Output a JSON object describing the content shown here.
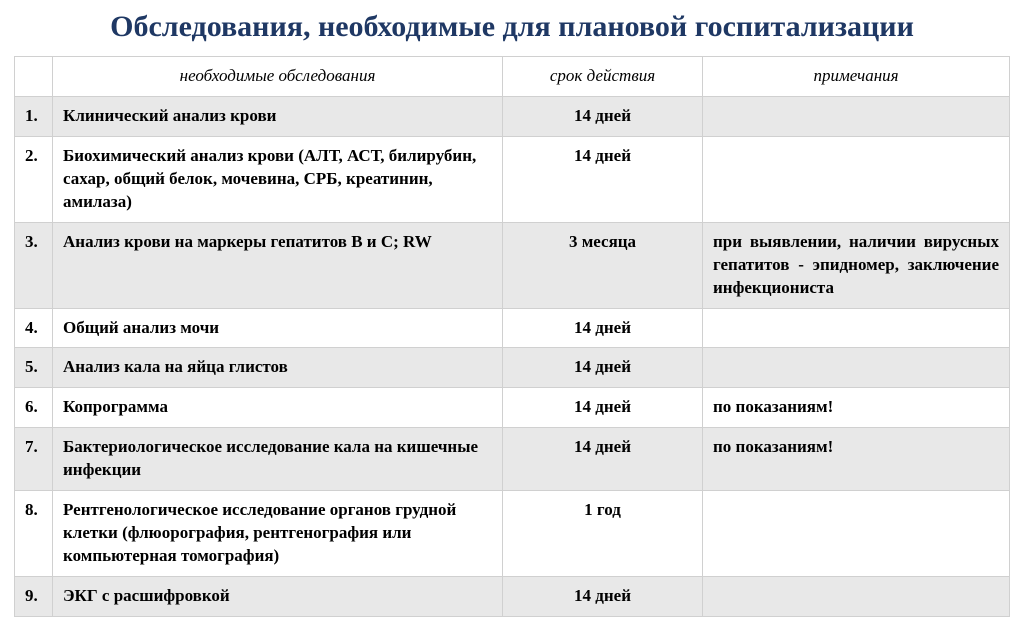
{
  "title": "Обследования, необходимые для плановой госпитализации",
  "headers": {
    "num": "",
    "exam": "необходимые обследования",
    "validity": "срок действия",
    "notes": "примечания"
  },
  "rows": [
    {
      "num": "1.",
      "exam": "Клинический анализ крови",
      "validity": "14 дней",
      "notes": ""
    },
    {
      "num": "2.",
      "exam": "Биохимический анализ крови (АЛТ, АСТ, билирубин, сахар, общий белок, мочевина, СРБ, креатинин, амилаза)",
      "validity": "14 дней",
      "notes": ""
    },
    {
      "num": "3.",
      "exam": "Анализ крови на маркеры гепатитов В и С; RW",
      "validity": "3 месяца",
      "notes": "при выявлении, наличии вирусных гепатитов - эпидномер, заключение инфекциониста"
    },
    {
      "num": "4.",
      "exam": "Общий анализ мочи",
      "validity": "14 дней",
      "notes": ""
    },
    {
      "num": "5.",
      "exam": "Анализ кала на яйца глистов",
      "validity": "14 дней",
      "notes": ""
    },
    {
      "num": "6.",
      "exam": "Копрограмма",
      "validity": "14 дней",
      "notes": "по показаниям!"
    },
    {
      "num": "7.",
      "exam": "Бактериологическое исследование кала на кишечные инфекции",
      "validity": "14 дней",
      "notes": "по показаниям!"
    },
    {
      "num": "8.",
      "exam": "Рентгенологическое исследование органов грудной клетки (флюорография, рентгенография или компьютерная томография)",
      "validity": "1 год",
      "notes": ""
    },
    {
      "num": "9.",
      "exam": "ЭКГ с расшифровкой",
      "validity": "14 дней",
      "notes": ""
    }
  ],
  "colors": {
    "title_color": "#1f3864",
    "border_color": "#d0d0d0",
    "odd_row_bg": "#e8e8e8",
    "even_row_bg": "#ffffff"
  }
}
